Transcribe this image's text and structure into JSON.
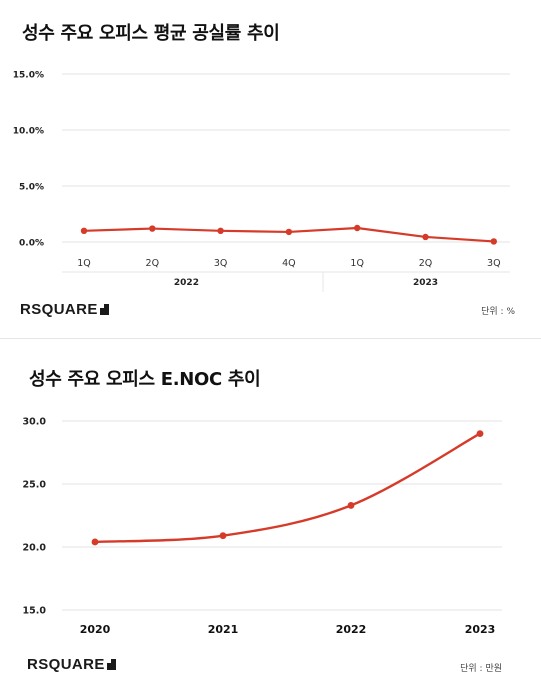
{
  "chart_data": [
    {
      "type": "line",
      "title": "성수 주요 오피스 평균 공실률 추이",
      "unit_label": "단위 : %",
      "logo_text": "RSQUARE",
      "categories": [
        "1Q",
        "2Q",
        "3Q",
        "4Q",
        "1Q",
        "2Q",
        "3Q"
      ],
      "year_groups": [
        {
          "label": "2022",
          "span": [
            0,
            3
          ]
        },
        {
          "label": "2023",
          "span": [
            4,
            6
          ]
        }
      ],
      "yticks": [
        "15.0%",
        "10.0%",
        "5.0%",
        "0.0%"
      ],
      "ylim": [
        0,
        15
      ],
      "series": [
        {
          "values": [
            1.0,
            1.2,
            1.0,
            0.9,
            1.25,
            0.45,
            0.05
          ],
          "color": "#d63b2a"
        }
      ],
      "grid": true
    },
    {
      "type": "line",
      "title": "성수 주요 오피스 E.NOC 추이",
      "unit_label": "단위 : 만원",
      "logo_text": "RSQUARE",
      "categories": [
        "2020",
        "2021",
        "2022",
        "2023"
      ],
      "yticks": [
        "30.0",
        "25.0",
        "20.0",
        "15.0"
      ],
      "ylim": [
        15,
        30
      ],
      "series": [
        {
          "values": [
            20.4,
            20.9,
            23.3,
            29.0
          ],
          "color": "#d63b2a"
        }
      ],
      "grid": true
    }
  ]
}
